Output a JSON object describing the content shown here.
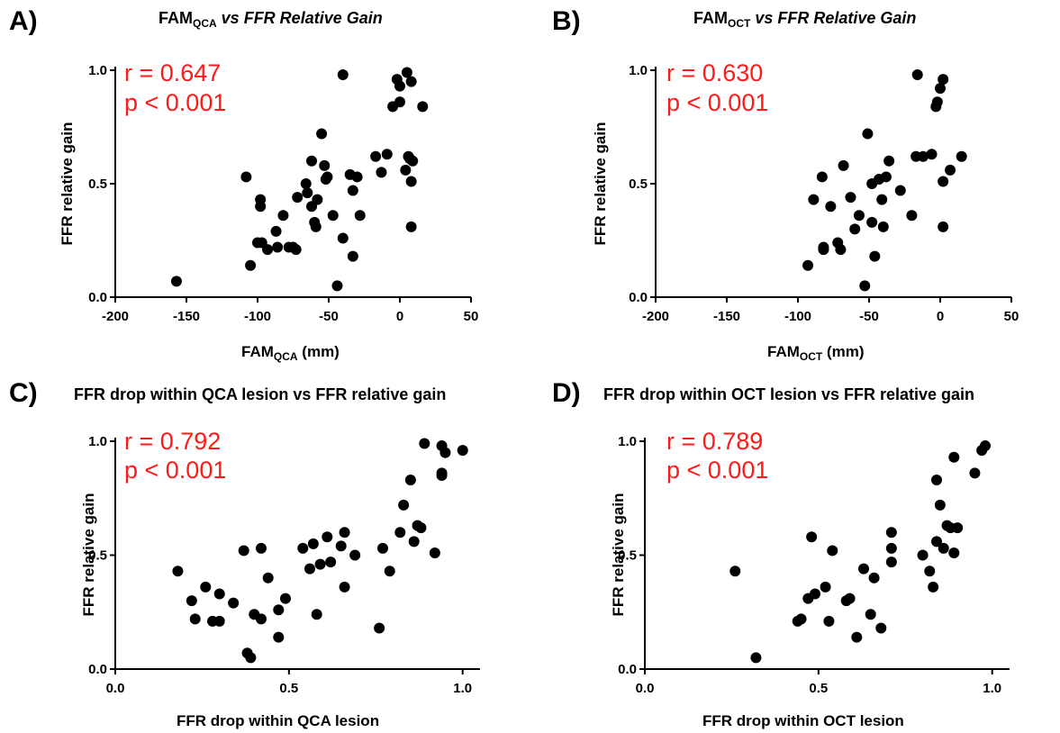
{
  "chart_data": [
    {
      "type": "scatter",
      "panel_label": "A)",
      "title": {
        "main": "FAM",
        "sub": "QCA",
        "rest": " vs FFR Relative Gain"
      },
      "xlabel": {
        "main": "FAM",
        "sub": "QCA",
        "rest": " (mm)"
      },
      "ylabel": "FFR relative gain",
      "stats": {
        "r": "r = 0.647",
        "p": "p < 0.001"
      },
      "xlim": [
        -200,
        50
      ],
      "ylim": [
        0,
        1
      ],
      "xticks": [
        "-200",
        "-150",
        "-100",
        "-50",
        "0",
        "50"
      ],
      "yticks": [
        "0.0",
        "0.5",
        "1.0"
      ],
      "xtick_values": [
        -200,
        -150,
        -100,
        -50,
        0,
        50
      ],
      "ytick_values": [
        0,
        0.5,
        1
      ],
      "points": [
        [
          -157,
          0.07
        ],
        [
          -108,
          0.53
        ],
        [
          -105,
          0.14
        ],
        [
          -100,
          0.24
        ],
        [
          -98,
          0.43
        ],
        [
          -98,
          0.4
        ],
        [
          -97,
          0.24
        ],
        [
          -93,
          0.21
        ],
        [
          -87,
          0.29
        ],
        [
          -86,
          0.22
        ],
        [
          -82,
          0.36
        ],
        [
          -78,
          0.22
        ],
        [
          -75,
          0.22
        ],
        [
          -73,
          0.21
        ],
        [
          -72,
          0.44
        ],
        [
          -66,
          0.5
        ],
        [
          -65,
          0.46
        ],
        [
          -62,
          0.6
        ],
        [
          -62,
          0.4
        ],
        [
          -60,
          0.33
        ],
        [
          -59,
          0.31
        ],
        [
          -58,
          0.43
        ],
        [
          -55,
          0.72
        ],
        [
          -53,
          0.58
        ],
        [
          -52,
          0.52
        ],
        [
          -51,
          0.53
        ],
        [
          -47,
          0.36
        ],
        [
          -44,
          0.05
        ],
        [
          -40,
          0.98
        ],
        [
          -40,
          0.26
        ],
        [
          -35,
          0.54
        ],
        [
          -33,
          0.18
        ],
        [
          -33,
          0.47
        ],
        [
          -30,
          0.53
        ],
        [
          -28,
          0.36
        ],
        [
          -17,
          0.62
        ],
        [
          -13,
          0.55
        ],
        [
          -9,
          0.63
        ],
        [
          -5,
          0.84
        ],
        [
          -2,
          0.96
        ],
        [
          0,
          0.86
        ],
        [
          0,
          0.93
        ],
        [
          4,
          0.56
        ],
        [
          5,
          0.99
        ],
        [
          6,
          0.62
        ],
        [
          7,
          0.61
        ],
        [
          8,
          0.95
        ],
        [
          8,
          0.51
        ],
        [
          8,
          0.31
        ],
        [
          9,
          0.6
        ],
        [
          16,
          0.84
        ]
      ]
    },
    {
      "type": "scatter",
      "panel_label": "B)",
      "title": {
        "main": "FAM",
        "sub": "OCT",
        "rest": " vs FFR Relative Gain"
      },
      "xlabel": {
        "main": "FAM",
        "sub": "OCT",
        "rest": " (mm)"
      },
      "ylabel": "FFR relative gain",
      "stats": {
        "r": "r = 0.630",
        "p": "p < 0.001"
      },
      "xlim": [
        -200,
        50
      ],
      "ylim": [
        0,
        1
      ],
      "xticks": [
        "-200",
        "-150",
        "-100",
        "-50",
        "0",
        "50"
      ],
      "yticks": [
        "0.0",
        "0.5",
        "1.0"
      ],
      "xtick_values": [
        -200,
        -150,
        -100,
        -50,
        0,
        50
      ],
      "ytick_values": [
        0,
        0.5,
        1
      ],
      "points": [
        [
          -93,
          0.14
        ],
        [
          -89,
          0.43
        ],
        [
          -83,
          0.53
        ],
        [
          -82,
          0.22
        ],
        [
          -82,
          0.21
        ],
        [
          -77,
          0.4
        ],
        [
          -72,
          0.24
        ],
        [
          -70,
          0.21
        ],
        [
          -68,
          0.58
        ],
        [
          -63,
          0.44
        ],
        [
          -60,
          0.3
        ],
        [
          -57,
          0.36
        ],
        [
          -53,
          0.05
        ],
        [
          -51,
          0.72
        ],
        [
          -48,
          0.33
        ],
        [
          -48,
          0.5
        ],
        [
          -46,
          0.18
        ],
        [
          -43,
          0.52
        ],
        [
          -41,
          0.43
        ],
        [
          -40,
          0.31
        ],
        [
          -38,
          0.53
        ],
        [
          -36,
          0.6
        ],
        [
          -28,
          0.47
        ],
        [
          -20,
          0.36
        ],
        [
          -17,
          0.62
        ],
        [
          -16,
          0.98
        ],
        [
          -12,
          0.62
        ],
        [
          -6,
          0.63
        ],
        [
          -3,
          0.84
        ],
        [
          -2,
          0.86
        ],
        [
          0,
          0.92
        ],
        [
          2,
          0.96
        ],
        [
          2,
          0.51
        ],
        [
          2,
          0.31
        ],
        [
          7,
          0.56
        ],
        [
          15,
          0.62
        ]
      ]
    },
    {
      "type": "scatter",
      "panel_label": "C)",
      "title": {
        "main": "FFR drop within QCA lesion vs FFR relative gain",
        "sub": "",
        "rest": ""
      },
      "xlabel": {
        "main": "FFR drop within QCA lesion",
        "sub": "",
        "rest": ""
      },
      "ylabel": "FFR relative gain",
      "stats": {
        "r": "r = 0.792",
        "p": "p < 0.001"
      },
      "xlim": [
        0,
        1.05
      ],
      "ylim": [
        0,
        1
      ],
      "xticks": [
        "0.0",
        "0.5",
        "1.0"
      ],
      "yticks": [
        "0.0",
        "0.5",
        "1.0"
      ],
      "xtick_values": [
        0,
        0.5,
        1
      ],
      "ytick_values": [
        0,
        0.5,
        1
      ],
      "points": [
        [
          0.18,
          0.43
        ],
        [
          0.22,
          0.3
        ],
        [
          0.23,
          0.22
        ],
        [
          0.26,
          0.36
        ],
        [
          0.28,
          0.21
        ],
        [
          0.3,
          0.21
        ],
        [
          0.3,
          0.33
        ],
        [
          0.34,
          0.29
        ],
        [
          0.37,
          0.52
        ],
        [
          0.38,
          0.07
        ],
        [
          0.39,
          0.05
        ],
        [
          0.4,
          0.24
        ],
        [
          0.42,
          0.53
        ],
        [
          0.42,
          0.22
        ],
        [
          0.44,
          0.4
        ],
        [
          0.47,
          0.26
        ],
        [
          0.47,
          0.14
        ],
        [
          0.49,
          0.31
        ],
        [
          0.54,
          0.53
        ],
        [
          0.56,
          0.44
        ],
        [
          0.57,
          0.55
        ],
        [
          0.58,
          0.24
        ],
        [
          0.59,
          0.46
        ],
        [
          0.61,
          0.58
        ],
        [
          0.62,
          0.47
        ],
        [
          0.65,
          0.54
        ],
        [
          0.66,
          0.6
        ],
        [
          0.66,
          0.36
        ],
        [
          0.69,
          0.5
        ],
        [
          0.76,
          0.18
        ],
        [
          0.77,
          0.53
        ],
        [
          0.79,
          0.43
        ],
        [
          0.82,
          0.6
        ],
        [
          0.83,
          0.72
        ],
        [
          0.85,
          0.83
        ],
        [
          0.86,
          0.56
        ],
        [
          0.87,
          0.63
        ],
        [
          0.88,
          0.62
        ],
        [
          0.89,
          0.99
        ],
        [
          0.92,
          0.51
        ],
        [
          0.94,
          0.98
        ],
        [
          0.94,
          0.86
        ],
        [
          0.94,
          0.85
        ],
        [
          0.95,
          0.95
        ],
        [
          1.0,
          0.96
        ]
      ]
    },
    {
      "type": "scatter",
      "panel_label": "D)",
      "title": {
        "main": "FFR drop within OCT lesion vs FFR relative gain",
        "sub": "",
        "rest": ""
      },
      "xlabel": {
        "main": "FFR drop within OCT lesion",
        "sub": "",
        "rest": ""
      },
      "ylabel": "FFR relative gain",
      "stats": {
        "r": "r = 0.789",
        "p": "p < 0.001"
      },
      "xlim": [
        0,
        1.05
      ],
      "ylim": [
        0,
        1
      ],
      "xticks": [
        "0.0",
        "0.5",
        "1.0"
      ],
      "yticks": [
        "0.0",
        "0.5",
        "1.0"
      ],
      "xtick_values": [
        0,
        0.5,
        1
      ],
      "ytick_values": [
        0,
        0.5,
        1
      ],
      "points": [
        [
          0.26,
          0.43
        ],
        [
          0.32,
          0.05
        ],
        [
          0.44,
          0.21
        ],
        [
          0.45,
          0.22
        ],
        [
          0.47,
          0.31
        ],
        [
          0.48,
          0.58
        ],
        [
          0.49,
          0.33
        ],
        [
          0.52,
          0.36
        ],
        [
          0.53,
          0.21
        ],
        [
          0.54,
          0.52
        ],
        [
          0.58,
          0.3
        ],
        [
          0.59,
          0.31
        ],
        [
          0.61,
          0.14
        ],
        [
          0.63,
          0.44
        ],
        [
          0.65,
          0.24
        ],
        [
          0.66,
          0.4
        ],
        [
          0.68,
          0.18
        ],
        [
          0.71,
          0.47
        ],
        [
          0.71,
          0.53
        ],
        [
          0.71,
          0.6
        ],
        [
          0.8,
          0.5
        ],
        [
          0.82,
          0.43
        ],
        [
          0.83,
          0.36
        ],
        [
          0.84,
          0.56
        ],
        [
          0.84,
          0.83
        ],
        [
          0.85,
          0.72
        ],
        [
          0.86,
          0.53
        ],
        [
          0.87,
          0.63
        ],
        [
          0.88,
          0.62
        ],
        [
          0.89,
          0.51
        ],
        [
          0.89,
          0.93
        ],
        [
          0.9,
          0.62
        ],
        [
          0.95,
          0.86
        ],
        [
          0.97,
          0.96
        ],
        [
          0.98,
          0.98
        ]
      ]
    }
  ]
}
